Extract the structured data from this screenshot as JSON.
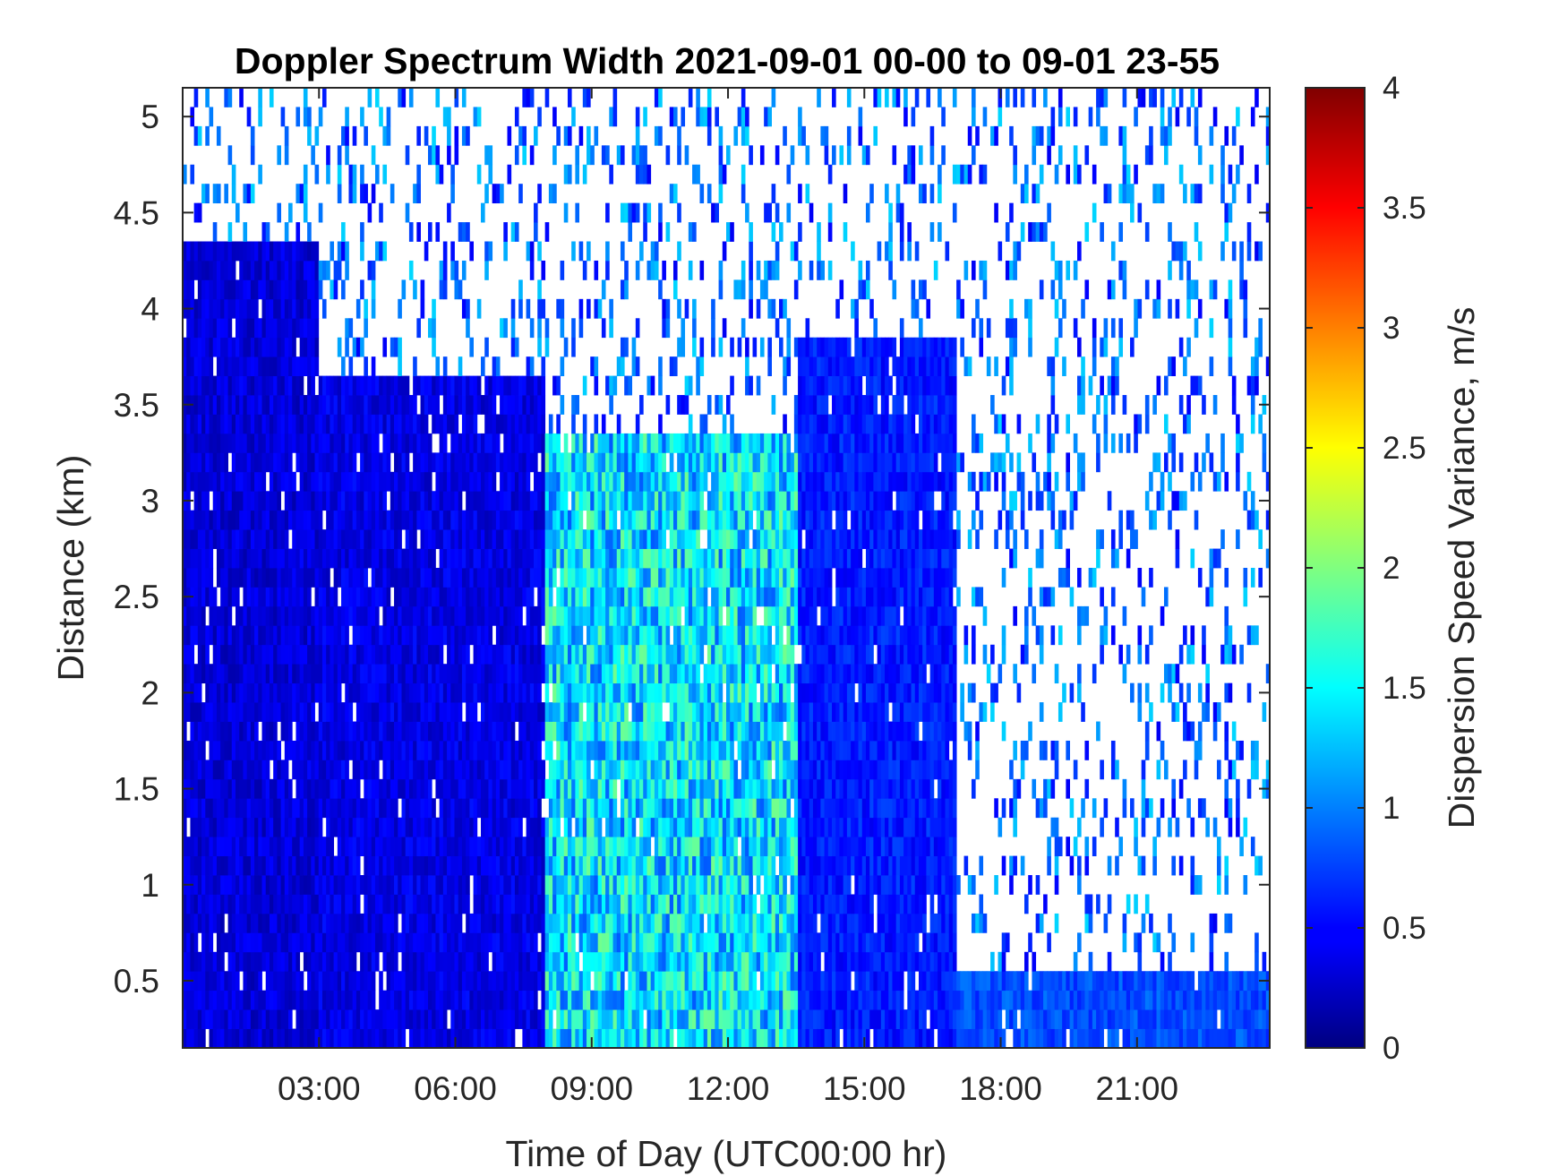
{
  "chart_data": {
    "type": "heatmap",
    "title": "Doppler Spectrum Width 2021-09-01 00-00 to 09-01 23-55",
    "xlabel": "Time of Day (UTC00:00 hr)",
    "ylabel": "Distance (km)",
    "colorbar_label": "Dispersion Speed Variance, m/s",
    "colormap": "jet",
    "missing_color": "#ffffff",
    "x_range_hours": [
      0,
      23.92
    ],
    "y_range_km": [
      0.15,
      5.15
    ],
    "clim": [
      0,
      4
    ],
    "x_ticks": [
      3,
      6,
      9,
      12,
      15,
      18,
      21
    ],
    "x_tick_labels": [
      "03:00",
      "06:00",
      "09:00",
      "12:00",
      "15:00",
      "18:00",
      "21:00"
    ],
    "y_ticks": [
      0.5,
      1,
      1.5,
      2,
      2.5,
      3,
      3.5,
      4,
      4.5,
      5
    ],
    "y_tick_labels": [
      "0.5",
      "1",
      "1.5",
      "2",
      "2.5",
      "3",
      "3.5",
      "4",
      "4.5",
      "5"
    ],
    "colorbar_ticks": [
      0,
      0.5,
      1,
      1.5,
      2,
      2.5,
      3,
      3.5,
      4
    ],
    "colorbar_tick_labels": [
      "0",
      "0.5",
      "1",
      "1.5",
      "2",
      "2.5",
      "3",
      "3.5",
      "4"
    ],
    "regions": [
      {
        "name": "night-stable-layer",
        "t_start": 0.0,
        "t_end": 3.0,
        "top_km": 4.3,
        "mean_width": 0.35
      },
      {
        "name": "night-stable-layer-2",
        "t_start": 3.0,
        "t_end": 8.0,
        "top_km": 3.6,
        "mean_width": 0.4
      },
      {
        "name": "daytime-convection",
        "t_start": 8.0,
        "t_end": 13.5,
        "top_km": 3.3,
        "mean_width": 1.4
      },
      {
        "name": "afternoon-layer",
        "t_start": 13.5,
        "t_end": 17.0,
        "top_km": 3.8,
        "mean_width": 0.6
      },
      {
        "name": "evening-surface-layer",
        "t_start": 17.0,
        "t_end": 23.92,
        "top_km": 0.5,
        "mean_width": 0.8
      }
    ]
  }
}
